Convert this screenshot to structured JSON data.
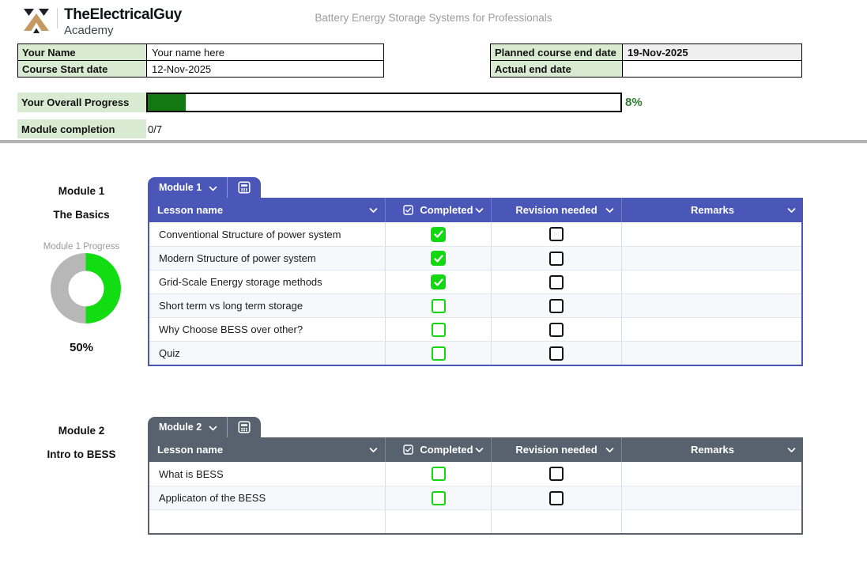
{
  "brand": {
    "name": "TheElectricalGuy",
    "sub": "Academy"
  },
  "page_title": "Battery Energy Storage Systems for Professionals",
  "info_left": {
    "rows": [
      {
        "label": "Your Name",
        "value": "Your name here"
      },
      {
        "label": "Course Start date",
        "value": "12-Nov-2025"
      }
    ]
  },
  "info_right": {
    "rows": [
      {
        "label": "Planned course end date",
        "value": "19-Nov-2025"
      },
      {
        "label": "Actual end date",
        "value": ""
      }
    ]
  },
  "progress": {
    "label": "Your Overall Progress",
    "percent": 8,
    "percent_label": "8%",
    "module_completion_label": "Module completion",
    "module_completion_value": "0/7"
  },
  "table_columns": [
    "Lesson name",
    "Completed",
    "Revision needed",
    "Remarks"
  ],
  "modules": [
    {
      "number": "Module 1",
      "title": "The Basics",
      "tab_label": "Module 1",
      "accent": "#4a56b8",
      "chart": {
        "type": "donut",
        "title": "Module 1 Progress",
        "percent": 50,
        "percent_label": "50%"
      },
      "rows": [
        {
          "lesson": "Conventional Structure of power system",
          "completed": true,
          "revision_needed": false,
          "remarks": ""
        },
        {
          "lesson": "Modern Structure of power system",
          "completed": true,
          "revision_needed": false,
          "remarks": ""
        },
        {
          "lesson": "Grid-Scale Energy storage methods",
          "completed": true,
          "revision_needed": false,
          "remarks": ""
        },
        {
          "lesson": "Short term vs long term storage",
          "completed": false,
          "revision_needed": false,
          "remarks": ""
        },
        {
          "lesson": "Why Choose BESS over other?",
          "completed": false,
          "revision_needed": false,
          "remarks": ""
        },
        {
          "lesson": "Quiz",
          "completed": false,
          "revision_needed": false,
          "remarks": ""
        }
      ],
      "partial_next_row": false
    },
    {
      "number": "Module 2",
      "title": "Intro to BESS",
      "tab_label": "Module 2",
      "accent": "#57626e",
      "rows": [
        {
          "lesson": "What is BESS",
          "completed": false,
          "revision_needed": false,
          "remarks": ""
        },
        {
          "lesson": "Applicaton of the BESS",
          "completed": false,
          "revision_needed": false,
          "remarks": ""
        }
      ],
      "partial_next_row": true
    }
  ],
  "icons": {
    "tab_chevron": "chevron-down",
    "column_chevron": "chevron-down",
    "tab_tool": "table-calculator",
    "completed_header": "checkbox-checked-outline",
    "brand_logo": "electricalguy-monogram"
  },
  "colors": {
    "module1_accent": "#4a56b8",
    "module2_accent": "#57626e",
    "label_cell_green": "#d9ead3",
    "value_cell_gray": "#efefef",
    "progress_fill_green": "#127812",
    "progress_text_green": "#2e7d32",
    "checkbox_green": "#12d812",
    "donut_green": "#12dd12",
    "donut_gray": "#b7b7b7",
    "logo_dark": "#1d2127",
    "logo_gold": "#c49a62"
  }
}
